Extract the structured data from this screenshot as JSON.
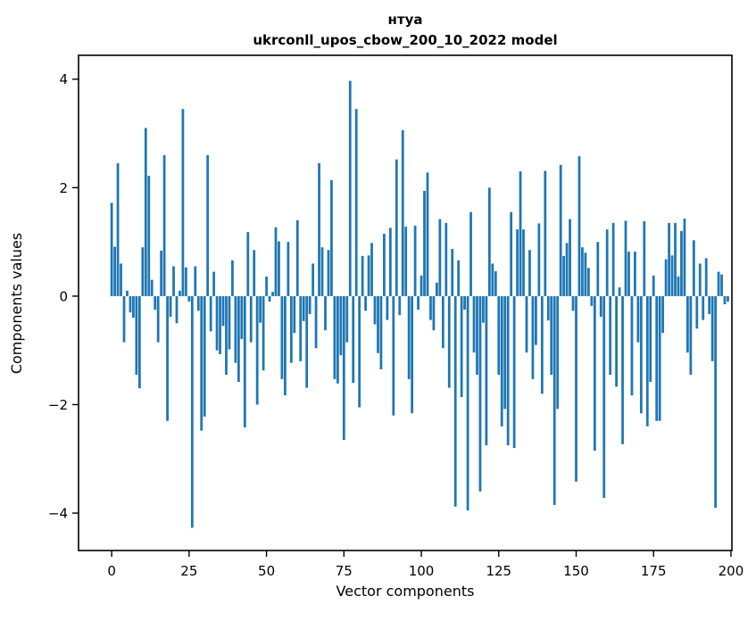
{
  "figure": {
    "background": "#ffffff",
    "title_line1": "нтуа",
    "title_line2": "ukrconll_upos_cbow_200_10_2022 model"
  },
  "chart_data": {
    "type": "bar",
    "title": "нтуа",
    "subtitle": "ukrconll_upos_cbow_200_10_2022 model",
    "xlabel": "Vector components",
    "ylabel": "Components values",
    "x_ticks": [
      0,
      25,
      50,
      75,
      100,
      125,
      150,
      175,
      200
    ],
    "y_ticks": [
      -4,
      -2,
      0,
      2,
      4
    ],
    "xlim": [
      -10.7,
      200.3
    ],
    "ylim": [
      -4.69,
      4.44
    ],
    "grid": false,
    "legend": null,
    "bar_color": "#1f77b4",
    "n_components": 200,
    "values": [
      1.72,
      0.91,
      2.45,
      0.6,
      -0.85,
      0.1,
      -0.3,
      -0.4,
      -1.45,
      -1.7,
      0.9,
      3.1,
      2.22,
      0.3,
      -0.25,
      -0.85,
      0.84,
      2.6,
      -2.3,
      -0.38,
      0.55,
      -0.5,
      0.1,
      3.45,
      0.53,
      -0.1,
      -4.27,
      0.55,
      -0.27,
      -2.48,
      -2.22,
      2.6,
      -0.65,
      0.45,
      -1.0,
      -1.07,
      -0.55,
      -1.45,
      -0.98,
      0.66,
      -1.23,
      -1.58,
      -0.79,
      -2.42,
      1.18,
      -0.85,
      0.85,
      -2.0,
      -0.49,
      -1.37,
      0.36,
      -0.1,
      0.08,
      1.27,
      1.01,
      -1.53,
      -1.83,
      1.0,
      -1.23,
      -0.68,
      1.4,
      -1.2,
      -0.46,
      -1.69,
      -0.33,
      0.6,
      -0.96,
      2.45,
      0.9,
      -0.63,
      0.85,
      2.14,
      -1.53,
      -1.61,
      -1.09,
      -2.65,
      -0.85,
      3.97,
      -1.6,
      3.45,
      -2.05,
      0.74,
      -0.27,
      0.75,
      0.98,
      -0.52,
      -1.05,
      -1.35,
      1.15,
      -0.44,
      1.26,
      -2.2,
      2.52,
      -0.35,
      3.06,
      1.28,
      -1.53,
      -2.16,
      1.3,
      -0.25,
      0.38,
      1.94,
      2.28,
      -0.44,
      -0.63,
      0.25,
      1.42,
      -0.96,
      1.35,
      -1.69,
      0.87,
      -3.88,
      0.66,
      -1.86,
      -0.25,
      -3.95,
      1.55,
      -1.04,
      -1.45,
      -3.6,
      -0.49,
      -2.75,
      2.0,
      0.6,
      0.46,
      -1.45,
      -2.4,
      -2.08,
      -2.75,
      1.55,
      -2.8,
      1.23,
      2.3,
      1.23,
      -1.04,
      0.85,
      -1.53,
      -0.9,
      1.34,
      -1.8,
      2.31,
      -0.45,
      -1.45,
      -3.85,
      -2.08,
      2.42,
      0.74,
      0.98,
      1.42,
      -0.27,
      -3.42,
      2.58,
      0.9,
      0.8,
      0.52,
      -0.18,
      -2.85,
      1.0,
      -0.38,
      -3.72,
      1.23,
      -1.45,
      1.35,
      -1.67,
      0.16,
      -2.73,
      1.39,
      0.82,
      -1.83,
      0.82,
      -0.85,
      -2.16,
      1.38,
      -2.4,
      -1.58,
      0.38,
      -2.3,
      -2.3,
      -0.68,
      0.68,
      1.35,
      0.75,
      1.35,
      0.36,
      1.2,
      1.43,
      -1.04,
      -1.45,
      1.03,
      -0.6,
      0.6,
      -0.44,
      0.7,
      -0.33,
      -1.2,
      -3.9,
      0.45,
      0.4,
      -0.15,
      -0.1
    ]
  }
}
